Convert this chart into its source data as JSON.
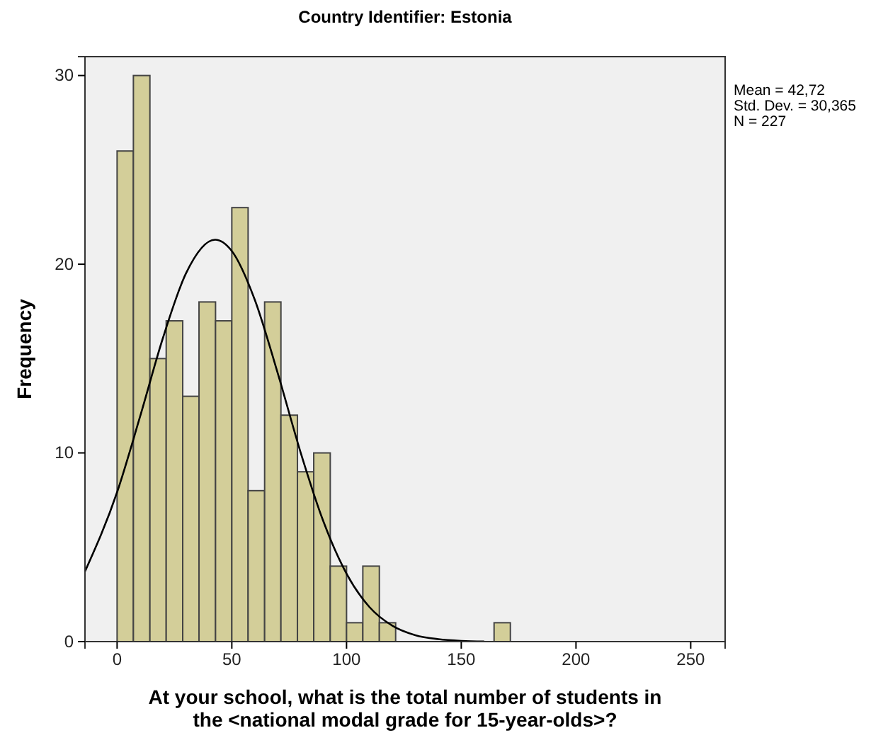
{
  "chart_data": {
    "type": "histogram",
    "title": "Country Identifier: Estonia",
    "xlabel": "At your school, what is the total number of students in the <national modal grade for 15-year-olds>?",
    "ylabel": "Frequency",
    "bins": [
      0,
      7.1,
      14.3,
      21.4,
      28.6,
      35.7,
      42.9,
      50,
      57.1,
      64.3,
      71.4,
      78.6,
      85.7,
      92.9,
      100,
      107.1,
      114.3,
      121.4,
      128.6,
      135.7,
      142.9,
      150,
      157.1,
      164.3,
      171.4
    ],
    "values": [
      26,
      30,
      15,
      17,
      13,
      18,
      17,
      23,
      8,
      18,
      12,
      9,
      10,
      4,
      1,
      4,
      1,
      0,
      0,
      0,
      0,
      0,
      0,
      1
    ],
    "color": "#d3ce99",
    "series": [
      {
        "type": "line",
        "color": "#000000",
        "x": [
          -14,
          0,
          10,
          20,
          30,
          42.72,
          50,
          60,
          70,
          80,
          90,
          100,
          110,
          120,
          130,
          140,
          150,
          160
        ],
        "values": [
          3.72,
          7.92,
          11.92,
          16.1,
          19.51,
          21.3,
          20.7,
          18.12,
          14.23,
          10.02,
          6.34,
          3.6,
          1.83,
          0.84,
          0.34,
          0.13,
          0.04,
          0.01
        ]
      }
    ],
    "xlim": [
      -14,
      265
    ],
    "xticks": [
      0,
      50,
      100,
      150,
      200,
      250
    ],
    "ylim": [
      0,
      31
    ],
    "yticks": [
      0,
      10,
      20,
      30
    ],
    "grid": false,
    "annotations": [
      "Mean = 42,72",
      "Std. Dev. = 30,365",
      "N = 227"
    ]
  }
}
